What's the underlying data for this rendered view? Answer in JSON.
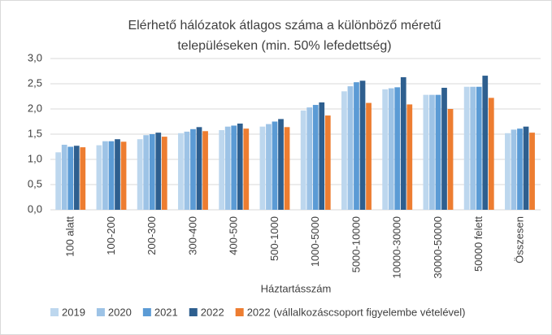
{
  "chart_data": {
    "type": "bar",
    "title": [
      "Elérhető hálózatok átlagos száma a különböző méretű",
      "településeken (min. 50% lefedettség)"
    ],
    "x_label": "Háztartásszám",
    "categories": [
      "100 alatt",
      "100-200",
      "200-300",
      "300-400",
      "400-500",
      "500-1000",
      "1000-5000",
      "5000-10000",
      "10000-30000",
      "30000-50000",
      "50000 felett",
      "Összesen"
    ],
    "series": [
      {
        "name": "2019",
        "color": "#bdd7ee",
        "values": [
          1.14,
          1.28,
          1.4,
          1.52,
          1.58,
          1.65,
          1.97,
          2.35,
          2.39,
          2.28,
          2.44,
          1.52
        ]
      },
      {
        "name": "2020",
        "color": "#9dc3e6",
        "values": [
          1.29,
          1.36,
          1.48,
          1.55,
          1.65,
          1.7,
          2.03,
          2.45,
          2.41,
          2.28,
          2.44,
          1.59
        ]
      },
      {
        "name": "2021",
        "color": "#5b9bd5",
        "values": [
          1.25,
          1.36,
          1.5,
          1.6,
          1.67,
          1.75,
          2.08,
          2.53,
          2.43,
          2.28,
          2.44,
          1.61
        ]
      },
      {
        "name": "2022",
        "color": "#2e5f8f",
        "values": [
          1.27,
          1.4,
          1.53,
          1.64,
          1.71,
          1.8,
          2.13,
          2.56,
          2.63,
          2.42,
          2.66,
          1.65
        ]
      },
      {
        "name": "2022 (vállalkozáscsoport figyelembe vételével)",
        "color": "#ed7d31",
        "values": [
          1.24,
          1.35,
          1.45,
          1.56,
          1.61,
          1.64,
          1.87,
          2.12,
          2.09,
          2.0,
          2.22,
          1.53
        ]
      }
    ],
    "ylim": [
      0,
      3
    ],
    "yticks": [
      {
        "value": 0,
        "label": "0,0"
      },
      {
        "value": 0.5,
        "label": "0,5"
      },
      {
        "value": 1,
        "label": "1,0"
      },
      {
        "value": 1.5,
        "label": "1,5"
      },
      {
        "value": 2,
        "label": "2,0"
      },
      {
        "value": 2.5,
        "label": "2,5"
      },
      {
        "value": 3,
        "label": "3,0"
      }
    ],
    "grid": true
  }
}
